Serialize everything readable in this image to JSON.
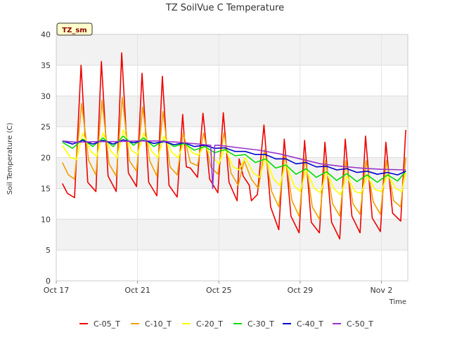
{
  "chart_data": {
    "type": "line",
    "title": "TZ SoilVue C Temperature",
    "xlabel": "Time",
    "ylabel": "Soil Temperature (C)",
    "ylim": [
      0,
      40
    ],
    "xlim": [
      17,
      34.3
    ],
    "yticks": [
      0,
      5,
      10,
      15,
      20,
      25,
      30,
      35,
      40
    ],
    "xticks": [
      {
        "label": "Oct 17",
        "value": 17
      },
      {
        "label": "Oct 21",
        "value": 21
      },
      {
        "label": "Oct 25",
        "value": 25
      },
      {
        "label": "Oct 29",
        "value": 29
      },
      {
        "label": "Nov 2",
        "value": 33
      }
    ],
    "x_units": "day of October (Nov 1 = 32)",
    "grid": true,
    "banded_background": true,
    "legend_position": "bottom",
    "site_label": "TZ_sm",
    "series": [
      {
        "name": "C-05_T",
        "color": "#ee0000",
        "x": [
          17.3,
          17.55,
          17.9,
          18.22,
          18.55,
          18.95,
          19.22,
          19.55,
          19.95,
          20.22,
          20.55,
          20.95,
          21.22,
          21.55,
          21.95,
          22.22,
          22.55,
          22.95,
          23.22,
          23.4,
          23.6,
          23.95,
          24.22,
          24.55,
          24.95,
          25.22,
          25.5,
          25.9,
          26.0,
          26.2,
          26.5,
          26.6,
          26.9,
          27.22,
          27.55,
          27.95,
          28.22,
          28.55,
          28.95,
          29.22,
          29.55,
          29.95,
          30.22,
          30.55,
          30.95,
          31.22,
          31.55,
          31.95,
          32.22,
          32.55,
          32.95,
          33.22,
          33.55,
          33.95,
          34.2
        ],
        "y": [
          15.8,
          14.2,
          13.5,
          35.0,
          16.0,
          14.5,
          35.6,
          17.0,
          14.5,
          37.0,
          17.5,
          15.3,
          33.7,
          16.0,
          13.8,
          33.2,
          15.5,
          13.6,
          27.0,
          18.5,
          18.3,
          16.8,
          27.2,
          16.5,
          14.3,
          27.3,
          16.0,
          13.0,
          19.8,
          17.0,
          15.5,
          13.0,
          14.0,
          25.3,
          12.0,
          8.3,
          23.0,
          10.5,
          7.8,
          22.8,
          9.5,
          7.8,
          22.5,
          9.5,
          6.8,
          23.0,
          10.5,
          7.8,
          23.5,
          10.2,
          8.0,
          22.5,
          11.0,
          9.7,
          24.5
        ]
      },
      {
        "name": "C-10_T",
        "color": "#f0a000",
        "x": [
          17.3,
          17.6,
          17.9,
          18.25,
          18.6,
          18.95,
          19.25,
          19.6,
          19.95,
          20.25,
          20.6,
          20.95,
          21.25,
          21.6,
          21.95,
          22.25,
          22.6,
          22.95,
          23.25,
          23.6,
          23.95,
          24.25,
          24.6,
          24.95,
          25.25,
          25.6,
          25.95,
          26.25,
          26.6,
          26.95,
          27.25,
          27.6,
          27.95,
          28.25,
          28.6,
          28.95,
          29.25,
          29.6,
          29.95,
          30.25,
          30.6,
          30.95,
          31.25,
          31.6,
          31.95,
          32.25,
          32.6,
          32.95,
          33.25,
          33.6,
          33.95,
          34.2
        ],
        "y": [
          19.2,
          17.2,
          16.5,
          28.8,
          19.5,
          17.2,
          29.3,
          19.0,
          17.0,
          29.8,
          19.5,
          17.8,
          28.2,
          19.5,
          17.0,
          27.5,
          18.5,
          17.2,
          24.0,
          19.2,
          18.7,
          24.0,
          18.5,
          17.3,
          24.0,
          17.5,
          15.5,
          19.5,
          16.5,
          15.0,
          21.3,
          14.5,
          12.0,
          20.5,
          13.0,
          10.5,
          20.0,
          12.0,
          10.0,
          19.5,
          12.5,
          10.5,
          19.5,
          12.5,
          10.8,
          19.5,
          12.8,
          10.8,
          19.5,
          13.0,
          12.0,
          20.0
        ]
      },
      {
        "name": "C-20_T",
        "color": "#ffff00",
        "x": [
          17.3,
          17.7,
          18.0,
          18.3,
          18.7,
          19.0,
          19.3,
          19.7,
          20.0,
          20.3,
          20.7,
          21.0,
          21.3,
          21.7,
          22.0,
          22.3,
          22.7,
          23.0,
          23.3,
          23.7,
          24.0,
          24.3,
          24.7,
          25.0,
          25.3,
          25.7,
          26.0,
          26.3,
          26.7,
          27.0,
          27.3,
          27.7,
          28.0,
          28.3,
          28.7,
          29.0,
          29.3,
          29.7,
          30.0,
          30.3,
          30.7,
          31.0,
          31.3,
          31.7,
          32.0,
          32.3,
          32.7,
          33.0,
          33.3,
          33.7,
          34.0,
          34.2
        ],
        "y": [
          22.0,
          20.0,
          19.7,
          24.0,
          21.0,
          20.2,
          24.0,
          21.0,
          20.0,
          24.5,
          21.2,
          20.5,
          24.0,
          21.0,
          20.0,
          23.5,
          20.8,
          20.0,
          22.5,
          20.8,
          20.4,
          22.0,
          20.0,
          19.0,
          21.5,
          18.5,
          18.0,
          20.0,
          17.5,
          16.8,
          20.0,
          16.5,
          15.5,
          19.0,
          15.5,
          14.5,
          18.0,
          15.0,
          14.3,
          17.5,
          14.8,
          14.0,
          17.0,
          14.5,
          14.2,
          17.0,
          14.8,
          14.5,
          17.3,
          15.0,
          14.5,
          17.5
        ]
      },
      {
        "name": "C-30_T",
        "color": "#00dd00",
        "x": [
          17.3,
          17.8,
          18.3,
          18.8,
          19.3,
          19.8,
          20.3,
          20.8,
          21.3,
          21.8,
          22.3,
          22.8,
          23.3,
          23.8,
          24.3,
          24.8,
          25.3,
          25.8,
          26.3,
          26.8,
          27.3,
          27.8,
          28.3,
          28.8,
          29.3,
          29.8,
          30.3,
          30.8,
          31.3,
          31.8,
          32.3,
          32.8,
          33.3,
          33.8,
          34.2
        ],
        "y": [
          22.5,
          21.5,
          23.0,
          21.8,
          23.2,
          21.8,
          23.5,
          22.0,
          23.2,
          21.8,
          22.8,
          21.8,
          22.3,
          21.2,
          21.8,
          20.8,
          21.3,
          20.3,
          20.5,
          19.2,
          19.8,
          18.3,
          18.8,
          17.3,
          18.2,
          16.8,
          17.7,
          16.3,
          17.4,
          16.1,
          17.2,
          16.0,
          17.2,
          16.2,
          17.8
        ]
      },
      {
        "name": "C-40_T",
        "color": "#0000cc",
        "x": [
          17.3,
          17.8,
          18.3,
          18.8,
          19.3,
          19.8,
          20.3,
          20.8,
          21.3,
          21.8,
          22.3,
          22.8,
          23.3,
          23.8,
          24.3,
          24.8,
          25.3,
          25.8,
          26.3,
          26.8,
          27.3,
          27.8,
          28.3,
          28.8,
          29.3,
          29.8,
          30.3,
          30.8,
          31.3,
          31.8,
          32.3,
          32.8,
          33.3,
          33.8,
          34.2
        ],
        "y": [
          22.7,
          22.2,
          22.8,
          22.2,
          22.8,
          22.2,
          22.9,
          22.4,
          22.8,
          22.3,
          22.6,
          22.1,
          22.4,
          21.8,
          22.0,
          21.5,
          21.6,
          21.0,
          21.0,
          20.5,
          20.5,
          19.8,
          19.8,
          19.0,
          19.2,
          18.5,
          18.6,
          18.0,
          18.2,
          17.6,
          17.8,
          17.3,
          17.6,
          17.2,
          17.8
        ]
      },
      {
        "name": "C-50_T",
        "color": "#9933cc",
        "x": [
          17.3,
          18.0,
          19.0,
          20.0,
          21.0,
          22.0,
          23.0,
          24.0,
          24.6,
          24.7,
          24.8,
          25.0,
          26.0,
          27.0,
          28.0,
          29.0,
          30.0,
          31.0,
          32.0,
          33.0,
          34.2
        ],
        "y": [
          22.7,
          22.5,
          22.6,
          22.6,
          22.7,
          22.7,
          22.5,
          22.2,
          22.0,
          15.0,
          22.0,
          22.0,
          21.6,
          21.2,
          20.6,
          19.8,
          19.0,
          18.6,
          18.3,
          18.1,
          18.0
        ]
      }
    ]
  }
}
